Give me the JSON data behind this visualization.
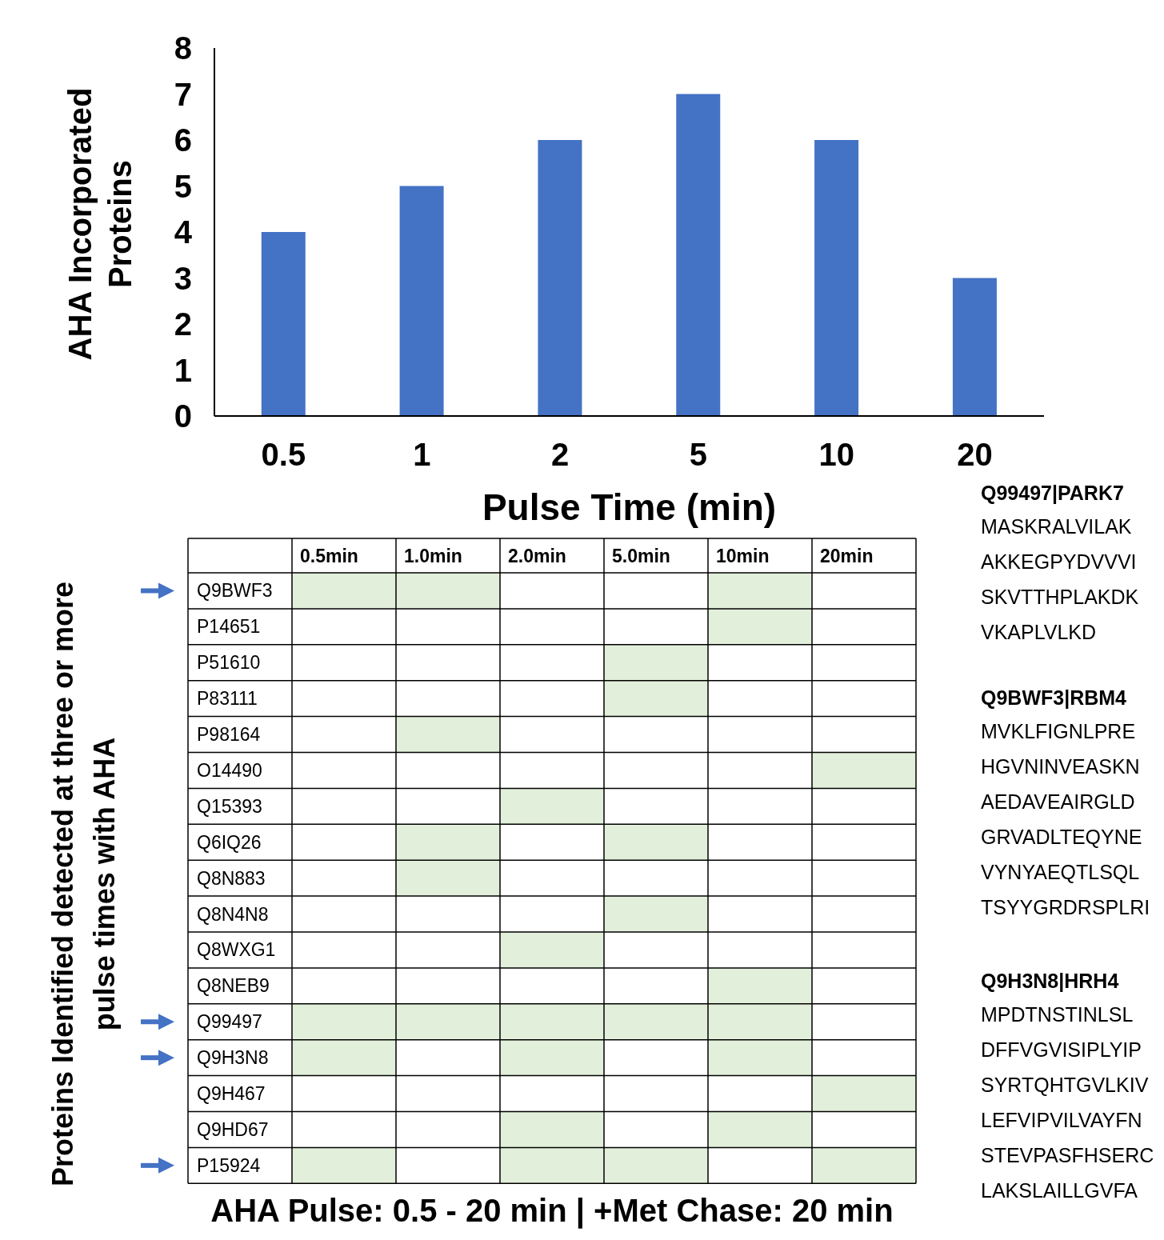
{
  "chart_data": [
    {
      "type": "bar",
      "xlabel": "Pulse Time (min)",
      "ylabel": "AHA Incorporated Proteins",
      "categories": [
        "0.5",
        "1",
        "2",
        "5",
        "10",
        "20"
      ],
      "values": [
        4,
        5,
        6,
        7,
        6,
        3
      ],
      "color": "#4472c4",
      "ylim": [
        0,
        8
      ],
      "yticks": [
        0,
        1,
        2,
        3,
        4,
        5,
        6,
        7,
        8
      ],
      "grid": false,
      "legend": false
    },
    {
      "type": "other",
      "xlabel": "AHA Pulse: 0.5 - 20 min | +Met Chase: 20 min",
      "ylabel": "Proteins Identified detected at three or more pulse times with AHA",
      "categories": [
        "0.5min",
        "1.0min",
        "2.0min",
        "5.0min",
        "10min",
        "20min"
      ],
      "y_categories": [
        "Q9BWF3",
        "P14651",
        "P51610",
        "P83111",
        "P98164",
        "O14490",
        "Q15393",
        "Q6IQ26",
        "Q8N883",
        "Q8N4N8",
        "Q8WXG1",
        "Q8NEB9",
        "Q99497",
        "Q9H3N8",
        "Q9H467",
        "Q9HD67",
        "P15924"
      ],
      "colors": [
        [
          "#e2efda",
          "#e2efda",
          null,
          null,
          "#e2efda",
          null
        ],
        [
          null,
          null,
          null,
          null,
          "#e2efda",
          null
        ],
        [
          null,
          null,
          null,
          "#e2efda",
          null,
          null
        ],
        [
          null,
          null,
          null,
          "#e2efda",
          null,
          null
        ],
        [
          null,
          "#e2efda",
          null,
          null,
          null,
          null
        ],
        [
          null,
          null,
          null,
          null,
          null,
          "#e2efda"
        ],
        [
          null,
          null,
          "#e2efda",
          null,
          null,
          null
        ],
        [
          null,
          "#e2efda",
          null,
          "#e2efda",
          null,
          null
        ],
        [
          null,
          "#e2efda",
          null,
          null,
          null,
          null
        ],
        [
          null,
          null,
          null,
          "#e2efda",
          null,
          null
        ],
        [
          null,
          null,
          "#e2efda",
          null,
          null,
          null
        ],
        [
          null,
          null,
          null,
          null,
          "#e2efda",
          null
        ],
        [
          "#e2efda",
          "#e2efda",
          "#e2efda",
          "#e2efda",
          "#e2efda",
          null
        ],
        [
          "#e2efda",
          null,
          "#e2efda",
          null,
          "#e2efda",
          null
        ],
        [
          null,
          null,
          null,
          null,
          null,
          "#e2efda"
        ],
        [
          null,
          null,
          "#e2efda",
          null,
          "#e2efda",
          null
        ],
        [
          "#e2efda",
          null,
          "#e2efda",
          "#e2efda",
          null,
          "#e2efda"
        ]
      ]
    },
    {
      "type": "other",
      "title": "Q99497|PARK7",
      "annotations": [
        "MASKRALVILAK",
        "AKKEGPYDVVVI",
        "SKVTTHPLAKDK",
        "VKAPLVLKD"
      ]
    },
    {
      "type": "other",
      "title": "Q9BWF3|RBM4",
      "annotations": [
        "MVKLFIGNLPRE",
        "HGVNINVEASKN",
        "AEDAVEAIRGLD",
        "GRVADLTEQYNE",
        "VYNYAEQTLSQL",
        "TSYYGRDRSPLRI"
      ]
    },
    {
      "type": "other",
      "title": "Q9H3N8|HRH4",
      "annotations": [
        "MPDTNSTINLSL",
        "DFFVGVISIPLYIP",
        "SYRTQHTGVLKIV",
        "LEFVIPVILVAYFN",
        "STEVPASFHSERC",
        "LAKSLAILLGVFA"
      ]
    }
  ]
}
